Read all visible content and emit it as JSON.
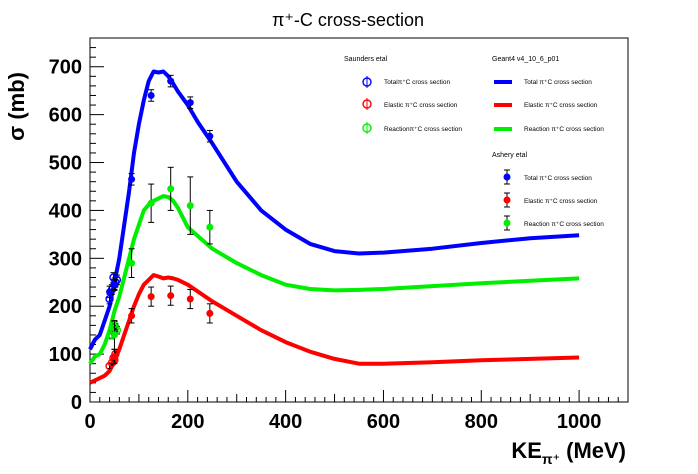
{
  "chart_data": {
    "type": "scatter",
    "title": "π⁺-C cross-section",
    "xlabel": {
      "main": "KE",
      "sub": "π⁺",
      "unit": " (MeV)"
    },
    "ylabel": "σ (mb)",
    "xlim": [
      0,
      1100
    ],
    "ylim": [
      0,
      760
    ],
    "xticks": [
      0,
      200,
      400,
      600,
      800,
      1000
    ],
    "yticks": [
      0,
      100,
      200,
      300,
      400,
      500,
      600,
      700
    ],
    "grid": false,
    "legend_position": "top-right",
    "legends": {
      "saunders": {
        "header": "Saunders etal",
        "entries": [
          "Totalπ⁺C cross section",
          "Elastic π⁺C cross section",
          "Reactionπ⁺C cross section"
        ]
      },
      "geant4": {
        "header": "Geant4 v4_10_6_p01",
        "entries": [
          "Total π⁺C cross section",
          "Elastic π⁺C cross section",
          "Reaction π⁺C cross section"
        ]
      },
      "ashery": {
        "header": "Ashery etal",
        "entries": [
          "Total π⁺C cross section",
          "Elastic π⁺C cross section",
          "Reaction π⁺C cross section"
        ]
      }
    },
    "colors": {
      "total": "#0000ff",
      "elastic": "#ff0000",
      "reaction": "#00ee00"
    },
    "series": [
      {
        "name": "Total π⁺C cross section",
        "kind": "curve",
        "color": "#0000ff",
        "x": [
          0,
          10,
          20,
          30,
          40,
          50,
          60,
          70,
          80,
          90,
          100,
          110,
          120,
          130,
          140,
          150,
          160,
          170,
          180,
          200,
          220,
          250,
          300,
          350,
          400,
          450,
          500,
          550,
          600,
          700,
          800,
          900,
          1000
        ],
        "y": [
          110,
          130,
          140,
          170,
          200,
          250,
          300,
          370,
          440,
          520,
          580,
          630,
          670,
          690,
          688,
          690,
          680,
          665,
          648,
          620,
          585,
          540,
          460,
          400,
          360,
          330,
          315,
          310,
          312,
          320,
          332,
          342,
          348
        ]
      },
      {
        "name": "Reaction π⁺C cross section",
        "kind": "curve",
        "color": "#00ee00",
        "x": [
          0,
          10,
          20,
          30,
          40,
          50,
          60,
          70,
          80,
          90,
          100,
          110,
          120,
          130,
          140,
          150,
          160,
          170,
          180,
          200,
          250,
          300,
          350,
          400,
          450,
          500,
          550,
          600,
          700,
          800,
          900,
          1000
        ],
        "y": [
          80,
          95,
          100,
          120,
          150,
          190,
          220,
          260,
          300,
          340,
          370,
          400,
          412,
          420,
          425,
          430,
          428,
          420,
          405,
          365,
          320,
          290,
          265,
          245,
          236,
          233,
          234,
          236,
          242,
          248,
          253,
          258
        ]
      },
      {
        "name": "Elastic π⁺C cross section",
        "kind": "curve",
        "color": "#ff0000",
        "x": [
          0,
          10,
          20,
          30,
          40,
          50,
          60,
          70,
          80,
          90,
          100,
          110,
          120,
          130,
          140,
          150,
          160,
          170,
          180,
          200,
          250,
          300,
          350,
          400,
          450,
          500,
          550,
          600,
          700,
          800,
          900,
          1000
        ],
        "y": [
          40,
          45,
          50,
          55,
          65,
          85,
          110,
          140,
          170,
          200,
          225,
          245,
          255,
          265,
          262,
          258,
          260,
          258,
          255,
          245,
          210,
          180,
          150,
          125,
          105,
          90,
          80,
          80,
          83,
          87,
          90,
          93
        ]
      },
      {
        "name": "Saunders Total",
        "kind": "open-points",
        "color": "#0000ff",
        "x": [
          40,
          45,
          48,
          50,
          52,
          55
        ],
        "y": [
          215,
          235,
          260,
          245,
          250,
          255
        ],
        "err": [
          10,
          10,
          10,
          10,
          10,
          10
        ]
      },
      {
        "name": "Saunders Elastic",
        "kind": "open-points",
        "color": "#ff0000",
        "x": [
          40,
          45,
          48,
          50,
          52
        ],
        "y": [
          75,
          82,
          92,
          88,
          100
        ],
        "err": [
          5,
          5,
          5,
          5,
          5
        ]
      },
      {
        "name": "Saunders Reaction",
        "kind": "open-points",
        "color": "#00ee00",
        "x": [
          45,
          48,
          50,
          52,
          55
        ],
        "y": [
          140,
          150,
          160,
          155,
          150
        ],
        "err": [
          8,
          8,
          8,
          8,
          8
        ]
      },
      {
        "name": "Ashery Total",
        "kind": "points",
        "color": "#0000ff",
        "x": [
          40,
          50,
          85,
          125,
          165,
          205,
          245
        ],
        "y": [
          230,
          245,
          465,
          640,
          670,
          625,
          555
        ],
        "err": [
          12,
          12,
          12,
          12,
          12,
          12,
          12
        ]
      },
      {
        "name": "Ashery Reaction",
        "kind": "points",
        "color": "#00ee00",
        "x": [
          50,
          85,
          125,
          165,
          205,
          245
        ],
        "y": [
          140,
          290,
          415,
          445,
          410,
          365
        ],
        "err": [
          30,
          30,
          40,
          45,
          60,
          35
        ]
      },
      {
        "name": "Ashery Elastic",
        "kind": "points",
        "color": "#ff0000",
        "x": [
          50,
          85,
          125,
          165,
          205,
          245
        ],
        "y": [
          95,
          180,
          220,
          222,
          215,
          185
        ],
        "err": [
          15,
          15,
          20,
          20,
          20,
          20
        ]
      }
    ]
  }
}
